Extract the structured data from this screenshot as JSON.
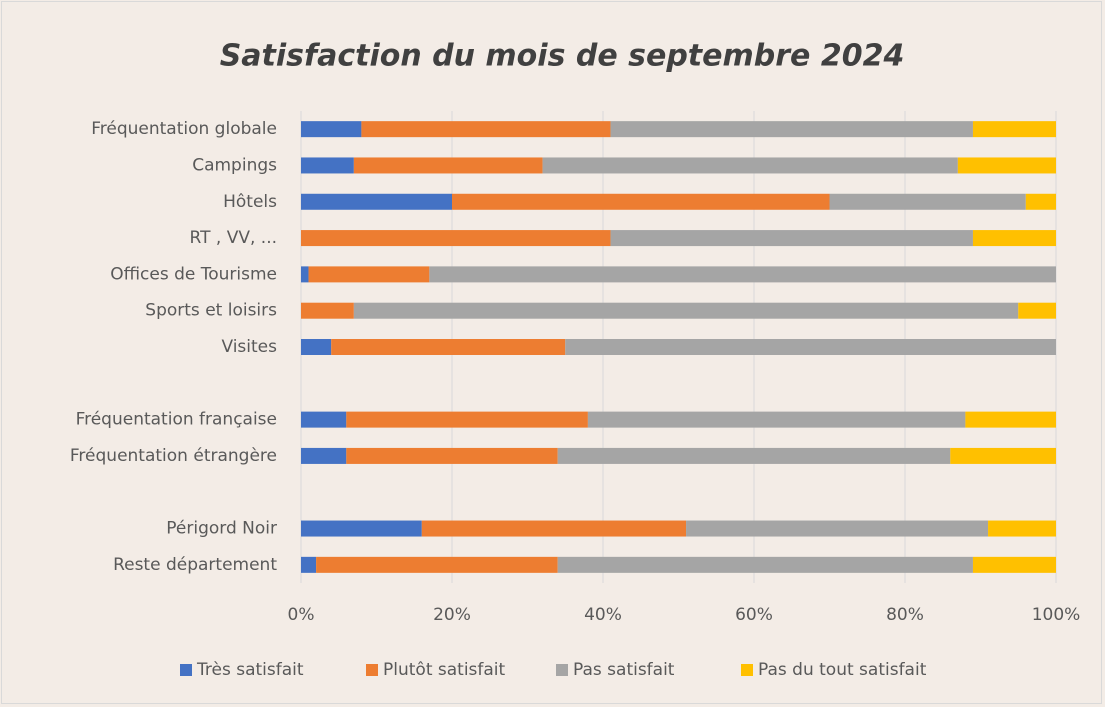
{
  "chart_data": {
    "type": "stacked_barh",
    "title": "Satisfaction du mois de septembre 2024",
    "categories": [
      "Fréquentation globale",
      "Campings",
      "Hôtels",
      "RT , VV, ...",
      "Offices de Tourisme",
      "Sports et loisirs",
      "Visites",
      null,
      "Fréquentation française",
      "Fréquentation étrangère",
      null,
      "Périgord Noir",
      "Reste département"
    ],
    "series": [
      {
        "name": "Très satisfait",
        "color": "#4472c4",
        "values": [
          8,
          7,
          20,
          0,
          1,
          0,
          4,
          null,
          6,
          6,
          null,
          16,
          2
        ]
      },
      {
        "name": "Plutôt satisfait",
        "color": "#ed7d31",
        "values": [
          33,
          25,
          50,
          41,
          16,
          7,
          31,
          null,
          32,
          28,
          null,
          35,
          32
        ]
      },
      {
        "name": "Pas satisfait",
        "color": "#a5a5a5",
        "values": [
          48,
          55,
          26,
          48,
          83,
          88,
          65,
          null,
          50,
          52,
          null,
          40,
          55
        ]
      },
      {
        "name": "Pas du tout satisfait",
        "color": "#ffc000",
        "values": [
          11,
          13,
          4,
          11,
          0,
          5,
          0,
          null,
          12,
          14,
          null,
          9,
          11
        ]
      }
    ],
    "xlim": [
      0,
      100
    ],
    "xticks": [
      {
        "value": 0,
        "label": "0%"
      },
      {
        "value": 20,
        "label": "20%"
      },
      {
        "value": 40,
        "label": "40%"
      },
      {
        "value": 60,
        "label": "60%"
      },
      {
        "value": 80,
        "label": "80%"
      },
      {
        "value": 100,
        "label": "100%"
      }
    ],
    "grid": true,
    "legend": "bottom"
  }
}
